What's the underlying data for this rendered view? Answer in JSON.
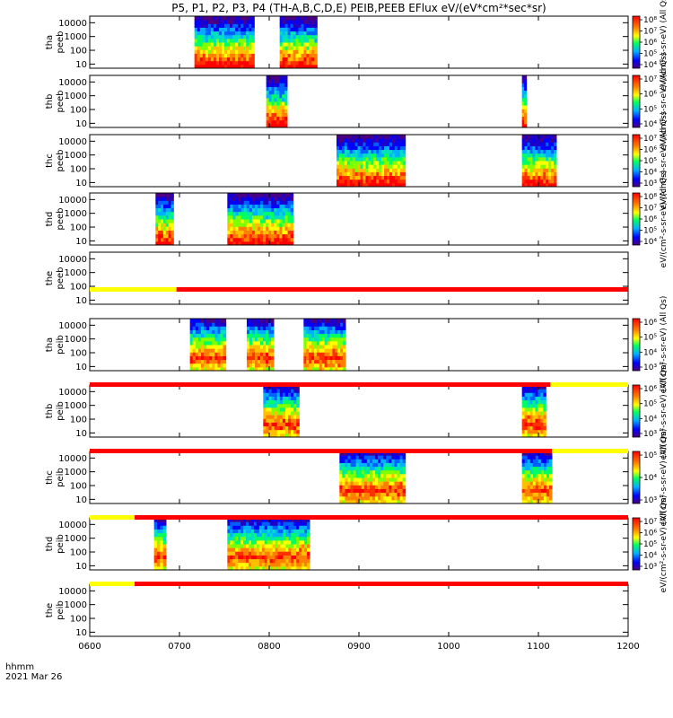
{
  "chart_data": {
    "type": "heatmap",
    "title": "P5, P1, P2, P3, P4 (TH-A,B,C,D,E) PEIB,PEEB EFlux eV/(eV*cm²*sec*sr)",
    "x_ticks": [
      "0600",
      "0700",
      "0800",
      "0900",
      "1000",
      "1100",
      "1200"
    ],
    "x_range_hours": [
      6.0,
      12.0
    ],
    "x_label_top": "hhmm",
    "x_label_bottom": "2021 Mar 26",
    "y_ticks": [
      "10",
      "100",
      "1000",
      "10000"
    ],
    "y_scale": "log",
    "y_range": [
      5,
      30000
    ],
    "panels": [
      {
        "label_line1": "tha",
        "label_line2": "peeb",
        "kind": "electron",
        "colorbar": {
          "label": "eV/(cm²-s-sr-eV) (All Qs)",
          "ticks": [
            "10⁴",
            "10⁵",
            "10⁶",
            "10⁷",
            "10⁸"
          ]
        },
        "intervals": [
          {
            "start": "0710",
            "end": "0750"
          },
          {
            "start": "0807",
            "end": "0832"
          }
        ]
      },
      {
        "label_line1": "thb",
        "label_line2": "peeb",
        "kind": "electron",
        "colorbar": {
          "label": "eV/(cm²-s-sr-eV) (All Qs)",
          "ticks": [
            "10⁴",
            "10⁵",
            "10⁶",
            "10⁷"
          ]
        },
        "intervals": [
          {
            "start": "0758",
            "end": "0812"
          },
          {
            "start": "1049",
            "end": "1052"
          }
        ]
      },
      {
        "label_line1": "thc",
        "label_line2": "peeb",
        "kind": "electron",
        "colorbar": {
          "label": "eV/(cm²-s-sr-eV) (All Qs)",
          "ticks": [
            "10³",
            "10⁴",
            "10⁵",
            "10⁶",
            "10⁷"
          ]
        },
        "intervals": [
          {
            "start": "0845",
            "end": "0931"
          },
          {
            "start": "1049",
            "end": "1112"
          }
        ]
      },
      {
        "label_line1": "thd",
        "label_line2": "peeb",
        "kind": "electron",
        "colorbar": {
          "label": "eV/(cm²-s-sr-eV) (All Qs)",
          "ticks": [
            "10⁴",
            "10⁵",
            "10⁶",
            "10⁷",
            "10⁸"
          ]
        },
        "intervals": [
          {
            "start": "0644",
            "end": "0656"
          },
          {
            "start": "0732",
            "end": "0816"
          }
        ]
      },
      {
        "label_line1": "the",
        "label_line2": "peeb",
        "kind": "electron",
        "colorbar": null,
        "intervals": []
      },
      {
        "label_line1": "tha",
        "label_line2": "peib",
        "kind": "ion",
        "colorbar": {
          "label": "eV/(cm²-s-sr-eV) (All Qs)",
          "ticks": [
            "10³",
            "10⁴",
            "10⁵",
            "10⁶"
          ]
        },
        "intervals": [
          {
            "start": "0707",
            "end": "0731"
          },
          {
            "start": "0745",
            "end": "0803"
          },
          {
            "start": "0823",
            "end": "0851"
          }
        ]
      },
      {
        "label_line1": "thb",
        "label_line2": "peib",
        "kind": "ion",
        "colorbar": {
          "label": "eV/(cm²-s-sr-eV) (All Qs)",
          "ticks": [
            "10³",
            "10⁴",
            "10⁵",
            "10⁶"
          ]
        },
        "intervals": [
          {
            "start": "0756",
            "end": "0820"
          },
          {
            "start": "1049",
            "end": "1105"
          }
        ]
      },
      {
        "label_line1": "thc",
        "label_line2": "peib",
        "kind": "ion",
        "colorbar": {
          "label": "eV/(cm²-s-sr-eV) (All Qs)",
          "ticks": [
            "10³",
            "10⁴",
            "10⁵"
          ]
        },
        "intervals": [
          {
            "start": "0847",
            "end": "0931"
          },
          {
            "start": "1049",
            "end": "1109"
          }
        ]
      },
      {
        "label_line1": "thd",
        "label_line2": "peib",
        "kind": "ion",
        "colorbar": {
          "label": "eV/(cm²-s-sr-eV) (All Qs)",
          "ticks": [
            "10³",
            "10⁴",
            "10⁵",
            "10⁶",
            "10⁷"
          ]
        },
        "intervals": [
          {
            "start": "0643",
            "end": "0651"
          },
          {
            "start": "0732",
            "end": "0827"
          }
        ]
      },
      {
        "label_line1": "the",
        "label_line2": "peib",
        "kind": "ion",
        "colorbar": null,
        "intervals": []
      }
    ],
    "region_bars": [
      {
        "segments": [
          {
            "start": "0600",
            "end": "0658",
            "color": "#ffff00"
          },
          {
            "start": "0658",
            "end": "1200",
            "color": "#ff0000"
          }
        ]
      },
      {
        "segments": [
          {
            "start": "0600",
            "end": "1108",
            "color": "#ff0000"
          },
          {
            "start": "1108",
            "end": "1200",
            "color": "#ffff00"
          }
        ]
      },
      {
        "segments": [
          {
            "start": "0600",
            "end": "1109",
            "color": "#ff0000"
          },
          {
            "start": "1109",
            "end": "1200",
            "color": "#ffff00"
          }
        ]
      },
      {
        "segments": [
          {
            "start": "0600",
            "end": "0630",
            "color": "#ffff00"
          },
          {
            "start": "0630",
            "end": "1200",
            "color": "#ff0000"
          }
        ]
      },
      {
        "segments": [
          {
            "start": "0600",
            "end": "0630",
            "color": "#ffff00"
          },
          {
            "start": "0630",
            "end": "1200",
            "color": "#ff0000"
          }
        ]
      }
    ]
  }
}
